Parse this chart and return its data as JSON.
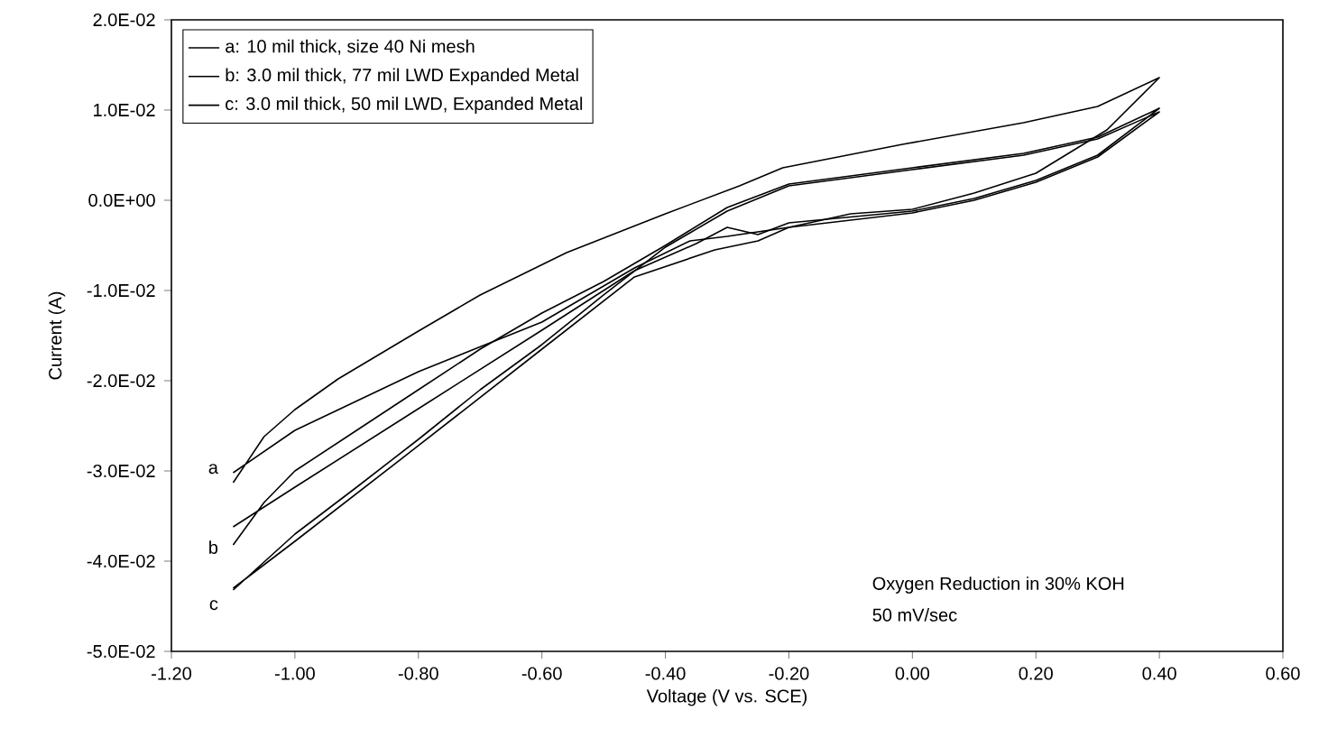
{
  "chart_data": {
    "type": "line",
    "xlabel": "Voltage (V vs. SCE)",
    "ylabel": "Current (A)",
    "xlim": [
      -1.2,
      0.6
    ],
    "xticks": [
      {
        "value": -1.2,
        "label": "-1.20"
      },
      {
        "value": -1.0,
        "label": "-1.00"
      },
      {
        "value": -0.8,
        "label": "-0.80"
      },
      {
        "value": -0.6,
        "label": "-0.60"
      },
      {
        "value": -0.4,
        "label": "-0.40"
      },
      {
        "value": -0.2,
        "label": "-0.20"
      },
      {
        "value": 0,
        "label": "0.00"
      },
      {
        "value": 0.2,
        "label": "0.20"
      },
      {
        "value": 0.4,
        "label": "0.40"
      },
      {
        "value": 0.6,
        "label": "0.60"
      }
    ],
    "ylim": [
      -0.05,
      0.02
    ],
    "yticks": [
      {
        "value": -0.05,
        "label": "-5.0E-02"
      },
      {
        "value": -0.04,
        "label": "-4.0E-02"
      },
      {
        "value": -0.03,
        "label": "-3.0E-02"
      },
      {
        "value": -0.02,
        "label": "-2.0E-02"
      },
      {
        "value": -0.01,
        "label": "-1.0E-02"
      },
      {
        "value": 0,
        "label": "0.0E+00"
      },
      {
        "value": 0.01,
        "label": "1.0E-02"
      },
      {
        "value": 0.02,
        "label": "2.0E-02"
      }
    ],
    "legend": "top left",
    "marker": "none",
    "line_style": "solid",
    "grid": false,
    "series": [
      {
        "name": "a: 10 mil thick, size 40 Ni mesh",
        "color": "#000000",
        "x": [
          -1.1,
          -1.05,
          -1.0,
          -0.93,
          -0.8,
          -0.7,
          -0.56,
          -0.4,
          -0.28,
          -0.21,
          -0.016,
          0.18,
          0.3,
          0.4,
          0.315,
          0.2,
          0.1,
          0.0,
          -0.1,
          -0.2,
          -0.3,
          -0.36,
          -0.45,
          -0.6,
          -0.8,
          -1.0,
          -1.1
        ],
        "values": [
          -0.0313,
          -0.0262,
          -0.0232,
          -0.0198,
          -0.0145,
          -0.0105,
          -0.0058,
          -0.0015,
          0.0016,
          0.0036,
          0.0062,
          0.0086,
          0.0104,
          0.0136,
          0.0078,
          0.003,
          0.0008,
          -0.001,
          -0.0015,
          -0.003,
          -0.004,
          -0.0045,
          -0.0075,
          -0.0135,
          -0.019,
          -0.0255,
          -0.0302
        ]
      },
      {
        "name": "b: 3.0 mil thick, 77 mil LWD Expanded Metal",
        "color": "#000000",
        "x": [
          -1.1,
          -1.05,
          -1.0,
          -0.9,
          -0.8,
          -0.7,
          -0.6,
          -0.5,
          -0.4,
          -0.3,
          -0.2,
          0.0,
          0.18,
          0.3,
          0.4,
          0.3,
          0.2,
          0.1,
          0.0,
          -0.2,
          -0.25,
          -0.3,
          -0.35,
          -0.45,
          -0.6,
          -0.8,
          -1.0,
          -1.1
        ],
        "values": [
          -0.0382,
          -0.0335,
          -0.03,
          -0.0255,
          -0.021,
          -0.0165,
          -0.0125,
          -0.009,
          -0.005,
          -0.0008,
          0.0018,
          0.0036,
          0.0052,
          0.007,
          0.0102,
          0.005,
          0.0022,
          0.0002,
          -0.0012,
          -0.0025,
          -0.0038,
          -0.003,
          -0.0048,
          -0.0078,
          -0.0144,
          -0.0231,
          -0.0318,
          -0.0362
        ]
      },
      {
        "name": "c: 3.0 mil thick, 50 mil LWD, Expanded Metal",
        "color": "#000000",
        "x": [
          -1.1,
          -1.0,
          -0.9,
          -0.8,
          -0.7,
          -0.6,
          -0.5,
          -0.4,
          -0.3,
          -0.2,
          0.0,
          0.18,
          0.3,
          0.4,
          0.3,
          0.2,
          0.1,
          0.0,
          -0.2,
          -0.25,
          -0.32,
          -0.45,
          -0.6,
          -0.8,
          -1.0,
          -1.1
        ],
        "values": [
          -0.0432,
          -0.037,
          -0.0318,
          -0.0265,
          -0.021,
          -0.016,
          -0.0105,
          -0.0052,
          -0.0012,
          0.0016,
          0.0034,
          0.005,
          0.0068,
          0.0098,
          0.0048,
          0.002,
          0.0,
          -0.0014,
          -0.003,
          -0.0045,
          -0.0055,
          -0.0085,
          -0.0165,
          -0.0272,
          -0.0378,
          -0.043
        ]
      }
    ],
    "annotations": [
      "a",
      "b",
      "c",
      "Oxygen Reduction in 30% KOH",
      "50 mV/sec"
    ]
  }
}
